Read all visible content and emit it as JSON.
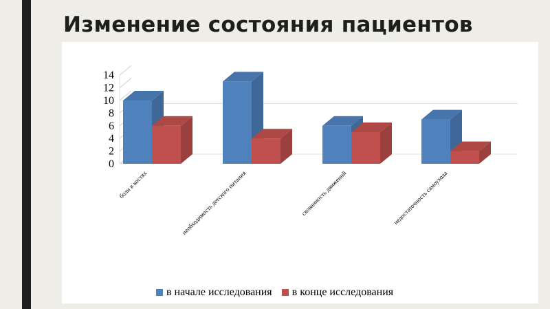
{
  "slide": {
    "title": "Изменение состояния пациентов"
  },
  "chart_data": {
    "type": "bar",
    "title": "",
    "xlabel": "",
    "ylabel": "",
    "ylim": [
      0,
      14
    ],
    "yticks": [
      0,
      2,
      4,
      6,
      8,
      10,
      12,
      14
    ],
    "categories": [
      "боли в костях",
      "необходимость детского питания",
      "скованность движений",
      "недостаточность самоухода"
    ],
    "series": [
      {
        "name": "в начале исследования",
        "values": [
          10,
          13,
          6,
          7
        ],
        "color": "#4f81bd"
      },
      {
        "name": "в конце исследования",
        "values": [
          6,
          4,
          5,
          2
        ],
        "color": "#c0504d"
      }
    ],
    "legend_position": "bottom",
    "grid": "single gridline at back wall",
    "style": "3d-clustered-column"
  }
}
